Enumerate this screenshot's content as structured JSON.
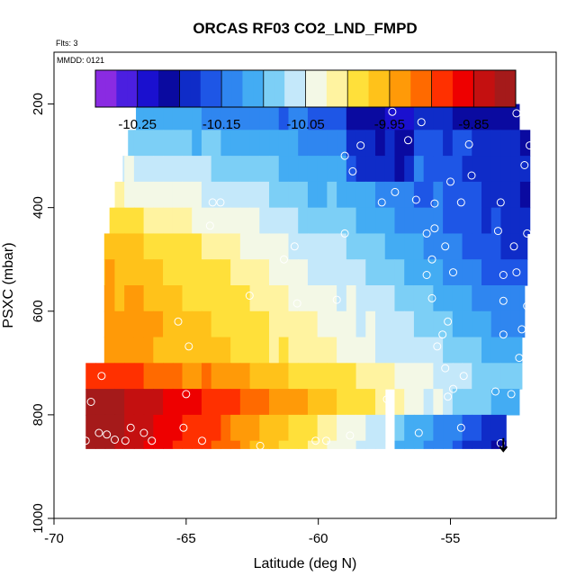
{
  "chart_data": {
    "type": "heatmap",
    "title": "ORCAS RF03 CO2_LND_FMPD",
    "flights_note": "Flts: 3",
    "date_note": "MMDD: 0121",
    "xlabel": "Latitude (deg N)",
    "ylabel": "PSXC (mbar)",
    "xlim": [
      -70,
      -51
    ],
    "ylim": [
      1000,
      100
    ],
    "y_reversed": true,
    "x_ticks": [
      "-70",
      "-65",
      "-60",
      "-55"
    ],
    "y_ticks": [
      "200",
      "400",
      "600",
      "800",
      "1000"
    ],
    "grid": false,
    "colorbar": {
      "placement": "top",
      "range": [
        -10.3,
        -9.8
      ],
      "tick_labels": [
        "-10.25",
        "-10.15",
        "-10.05",
        "-9.95",
        "-9.85"
      ],
      "tick_values": [
        -10.25,
        -10.15,
        -10.05,
        -9.95,
        -9.85
      ],
      "colors": [
        "#8a2be2",
        "#4b1fe0",
        "#1a10cf",
        "#0a0aa0",
        "#0f2cc8",
        "#1e56e6",
        "#2f86f0",
        "#43acf3",
        "#7ccff6",
        "#c4e8fa",
        "#f3f8e6",
        "#fff3a0",
        "#ffe03a",
        "#ffc21a",
        "#ff9a08",
        "#ff6a00",
        "#ff3000",
        "#ee0000",
        "#c41010",
        "#a51a1a"
      ]
    },
    "cells": {
      "x_start": -68.8,
      "x_end": -52.0,
      "columns": 46,
      "pressure_bands": [
        {
          "p_top": 175,
          "p_bottom": 200,
          "lat_min": -66.6,
          "lat_max": -52.8,
          "v_left": -10.15,
          "v_right": -10.23
        },
        {
          "p_top": 200,
          "p_bottom": 250,
          "lat_min": -66.9,
          "lat_max": -52.4,
          "v_left": -10.11,
          "v_right": -10.22
        },
        {
          "p_top": 250,
          "p_bottom": 300,
          "lat_min": -67.2,
          "lat_max": -51.9,
          "v_left": -10.08,
          "v_right": -10.2
        },
        {
          "p_top": 300,
          "p_bottom": 350,
          "lat_min": -67.4,
          "lat_max": -51.9,
          "v_left": -10.05,
          "v_right": -10.2
        },
        {
          "p_top": 350,
          "p_bottom": 400,
          "lat_min": -67.7,
          "lat_max": -51.9,
          "v_left": -10.02,
          "v_right": -10.2
        },
        {
          "p_top": 400,
          "p_bottom": 450,
          "lat_min": -67.9,
          "lat_max": -51.9,
          "v_left": -9.99,
          "v_right": -10.2
        },
        {
          "p_top": 450,
          "p_bottom": 500,
          "lat_min": -68.1,
          "lat_max": -52.1,
          "v_left": -9.96,
          "v_right": -10.19
        },
        {
          "p_top": 500,
          "p_bottom": 550,
          "lat_min": -68.1,
          "lat_max": -52.1,
          "v_left": -9.95,
          "v_right": -10.17
        },
        {
          "p_top": 550,
          "p_bottom": 600,
          "lat_min": -68.1,
          "lat_max": -52.2,
          "v_left": -9.94,
          "v_right": -10.15
        },
        {
          "p_top": 600,
          "p_bottom": 650,
          "lat_min": -68.1,
          "lat_max": -52.2,
          "v_left": -9.93,
          "v_right": -10.14
        },
        {
          "p_top": 650,
          "p_bottom": 700,
          "lat_min": -68.1,
          "lat_max": -52.3,
          "v_left": -9.93,
          "v_right": -10.12
        },
        {
          "p_top": 700,
          "p_bottom": 750,
          "lat_min": -68.8,
          "lat_max": -52.3,
          "v_left": -9.88,
          "v_right": -10.1
        },
        {
          "p_top": 750,
          "p_bottom": 800,
          "lat_min": -68.8,
          "lat_max": -52.4,
          "v_left": -9.81,
          "v_right": -10.12
        },
        {
          "p_top": 800,
          "p_bottom": 850,
          "lat_min": -68.8,
          "lat_max": -52.9,
          "v_left": -9.8,
          "v_right": -10.2
        },
        {
          "p_top": 850,
          "p_bottom": 865,
          "lat_min": -68.8,
          "lat_max": -52.9,
          "v_left": -9.8,
          "v_right": -10.22
        }
      ],
      "gap": {
        "lat_min": -57.6,
        "lat_max": -57.1,
        "p_min": 740,
        "p_max": 865
      }
    },
    "sample_points": [
      {
        "lat": -66.1,
        "p": 178
      },
      {
        "lat": -65.4,
        "p": 178
      },
      {
        "lat": -64.7,
        "p": 178
      },
      {
        "lat": -63.9,
        "p": 178
      },
      {
        "lat": -63.2,
        "p": 178
      },
      {
        "lat": -62.4,
        "p": 178
      },
      {
        "lat": -61.6,
        "p": 178
      },
      {
        "lat": -60.9,
        "p": 178
      },
      {
        "lat": -60.1,
        "p": 185
      },
      {
        "lat": -58.5,
        "p": 178
      },
      {
        "lat": -58.2,
        "p": 178
      },
      {
        "lat": -57.9,
        "p": 178
      },
      {
        "lat": -57.4,
        "p": 178
      },
      {
        "lat": -57.0,
        "p": 185
      },
      {
        "lat": -56.6,
        "p": 178
      },
      {
        "lat": -56.1,
        "p": 180
      },
      {
        "lat": -55.7,
        "p": 178
      },
      {
        "lat": -55.3,
        "p": 192
      },
      {
        "lat": -54.9,
        "p": 178
      },
      {
        "lat": -54.2,
        "p": 178
      },
      {
        "lat": -53.6,
        "p": 178
      },
      {
        "lat": -53.0,
        "p": 178
      },
      {
        "lat": -57.2,
        "p": 215
      },
      {
        "lat": -52.5,
        "p": 218
      },
      {
        "lat": -56.1,
        "p": 235
      },
      {
        "lat": -59.0,
        "p": 300
      },
      {
        "lat": -58.4,
        "p": 280
      },
      {
        "lat": -54.3,
        "p": 278
      },
      {
        "lat": -52.2,
        "p": 318
      },
      {
        "lat": -52.0,
        "p": 280
      },
      {
        "lat": -58.7,
        "p": 330
      },
      {
        "lat": -57.6,
        "p": 390
      },
      {
        "lat": -57.1,
        "p": 370
      },
      {
        "lat": -56.3,
        "p": 385
      },
      {
        "lat": -55.6,
        "p": 392
      },
      {
        "lat": -54.6,
        "p": 390
      },
      {
        "lat": -54.2,
        "p": 338
      },
      {
        "lat": -55.0,
        "p": 350
      },
      {
        "lat": -53.1,
        "p": 390
      },
      {
        "lat": -56.6,
        "p": 270
      },
      {
        "lat": -64.0,
        "p": 390
      },
      {
        "lat": -63.7,
        "p": 390
      },
      {
        "lat": -64.1,
        "p": 435
      },
      {
        "lat": -59.0,
        "p": 450
      },
      {
        "lat": -55.9,
        "p": 450
      },
      {
        "lat": -55.6,
        "p": 440
      },
      {
        "lat": -53.2,
        "p": 445
      },
      {
        "lat": -52.1,
        "p": 450
      },
      {
        "lat": -60.9,
        "p": 475
      },
      {
        "lat": -61.3,
        "p": 500
      },
      {
        "lat": -55.7,
        "p": 500
      },
      {
        "lat": -55.2,
        "p": 475
      },
      {
        "lat": -52.6,
        "p": 475
      },
      {
        "lat": -55.9,
        "p": 530
      },
      {
        "lat": -54.9,
        "p": 525
      },
      {
        "lat": -53.0,
        "p": 530
      },
      {
        "lat": -52.5,
        "p": 525
      },
      {
        "lat": -68.5,
        "p": 580
      },
      {
        "lat": -60.8,
        "p": 585
      },
      {
        "lat": -62.6,
        "p": 570
      },
      {
        "lat": -59.3,
        "p": 578
      },
      {
        "lat": -55.7,
        "p": 575
      },
      {
        "lat": -53.0,
        "p": 580
      },
      {
        "lat": -52.1,
        "p": 590
      },
      {
        "lat": -65.3,
        "p": 620
      },
      {
        "lat": -55.1,
        "p": 620
      },
      {
        "lat": -55.3,
        "p": 645
      },
      {
        "lat": -53.0,
        "p": 645
      },
      {
        "lat": -52.3,
        "p": 635
      },
      {
        "lat": -64.9,
        "p": 668
      },
      {
        "lat": -55.5,
        "p": 668
      },
      {
        "lat": -52.4,
        "p": 690
      },
      {
        "lat": -55.2,
        "p": 710
      },
      {
        "lat": -54.5,
        "p": 725
      },
      {
        "lat": -68.2,
        "p": 725
      },
      {
        "lat": -52.7,
        "p": 760
      },
      {
        "lat": -65.0,
        "p": 760
      },
      {
        "lat": -57.4,
        "p": 770
      },
      {
        "lat": -55.1,
        "p": 765
      },
      {
        "lat": -53.3,
        "p": 755
      },
      {
        "lat": -54.9,
        "p": 750
      },
      {
        "lat": -68.6,
        "p": 775
      },
      {
        "lat": -68.0,
        "p": 838
      },
      {
        "lat": -68.3,
        "p": 835
      },
      {
        "lat": -67.1,
        "p": 825
      },
      {
        "lat": -66.6,
        "p": 835
      },
      {
        "lat": -65.1,
        "p": 825
      },
      {
        "lat": -66.3,
        "p": 850
      },
      {
        "lat": -64.4,
        "p": 850
      },
      {
        "lat": -67.3,
        "p": 850
      },
      {
        "lat": -60.1,
        "p": 850
      },
      {
        "lat": -59.7,
        "p": 850
      },
      {
        "lat": -62.2,
        "p": 860
      },
      {
        "lat": -58.8,
        "p": 840
      },
      {
        "lat": -56.2,
        "p": 835
      },
      {
        "lat": -54.6,
        "p": 825
      },
      {
        "lat": -53.1,
        "p": 855
      },
      {
        "lat": -68.8,
        "p": 850
      },
      {
        "lat": -67.7,
        "p": 848
      }
    ],
    "arrow": {
      "lat": -53.0,
      "p_from": 845,
      "p_to": 870
    }
  }
}
